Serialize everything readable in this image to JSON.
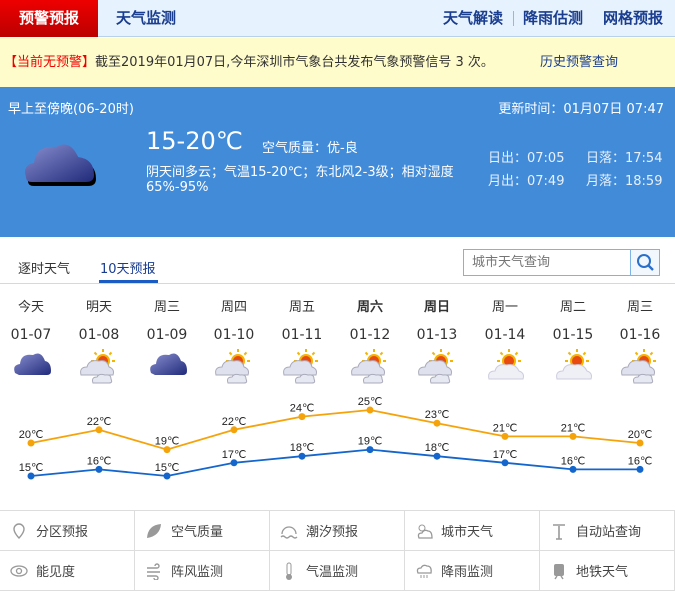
{
  "nav": {
    "active": "预警预报",
    "monitor": "天气监测",
    "right": [
      "天气解读",
      "降雨估测",
      "网格预报"
    ]
  },
  "alert": {
    "tag": "【当前无预警】",
    "text": "截至2019年01月07日,今年深圳市气象台共发布气象预警信号 3 次。",
    "history": "历史预警查询"
  },
  "now": {
    "period": "早上至傍晚(06-20时)",
    "updated": "更新时间：01月07日 07:47",
    "temp": "15-20℃",
    "aqi": "空气质量：优-良",
    "desc": "阴天间多云；气温15-20℃；东北风2-3级；相对湿度",
    "humidity": "65%-95%",
    "sunrise": "日出：07:05",
    "sunset": "日落：17:54",
    "moonrise": "月出：07:49",
    "moonset": "月落：18:59",
    "icon": "overcast-cloud-icon"
  },
  "tabs": [
    "逐时天气",
    "10天预报"
  ],
  "search": {
    "placeholder": "城市天气查询"
  },
  "days": [
    {
      "name": "今天",
      "date": "01-07",
      "icon": "overcast",
      "bold": false
    },
    {
      "name": "明天",
      "date": "01-08",
      "icon": "partly-cloudy",
      "bold": false
    },
    {
      "name": "周三",
      "date": "01-09",
      "icon": "overcast",
      "bold": false
    },
    {
      "name": "周四",
      "date": "01-10",
      "icon": "partly-cloudy",
      "bold": false
    },
    {
      "name": "周五",
      "date": "01-11",
      "icon": "partly-cloudy",
      "bold": false
    },
    {
      "name": "周六",
      "date": "01-12",
      "icon": "partly-cloudy",
      "bold": true
    },
    {
      "name": "周日",
      "date": "01-13",
      "icon": "partly-cloudy",
      "bold": true
    },
    {
      "name": "周一",
      "date": "01-14",
      "icon": "sunny-cloudy",
      "bold": false
    },
    {
      "name": "周二",
      "date": "01-15",
      "icon": "sunny-cloudy",
      "bold": false
    },
    {
      "name": "周三",
      "date": "01-16",
      "icon": "partly-cloudy",
      "bold": false
    }
  ],
  "chart_data": {
    "type": "line",
    "categories": [
      "01-07",
      "01-08",
      "01-09",
      "01-10",
      "01-11",
      "01-12",
      "01-13",
      "01-14",
      "01-15",
      "01-16"
    ],
    "unit": "℃",
    "series": [
      {
        "values": [
          20,
          22,
          19,
          22,
          24,
          25,
          23,
          21,
          21,
          20
        ],
        "color": "#f5a30a"
      },
      {
        "values": [
          15,
          16,
          15,
          17,
          18,
          19,
          18,
          17,
          16,
          16
        ],
        "color": "#1466cc"
      }
    ]
  },
  "links": [
    {
      "label": "分区预报",
      "icon": "map-pin-icon"
    },
    {
      "label": "空气质量",
      "icon": "leaf-icon"
    },
    {
      "label": "潮汐预报",
      "icon": "wave-icon"
    },
    {
      "label": "城市天气",
      "icon": "sun-cloud-icon"
    },
    {
      "label": "自动站查询",
      "icon": "station-icon"
    },
    {
      "label": "能见度",
      "icon": "eye-icon"
    },
    {
      "label": "阵风监测",
      "icon": "wind-icon"
    },
    {
      "label": "气温监测",
      "icon": "thermometer-icon"
    },
    {
      "label": "降雨监测",
      "icon": "rain-cloud-icon"
    },
    {
      "label": "地铁天气",
      "icon": "train-icon"
    }
  ]
}
